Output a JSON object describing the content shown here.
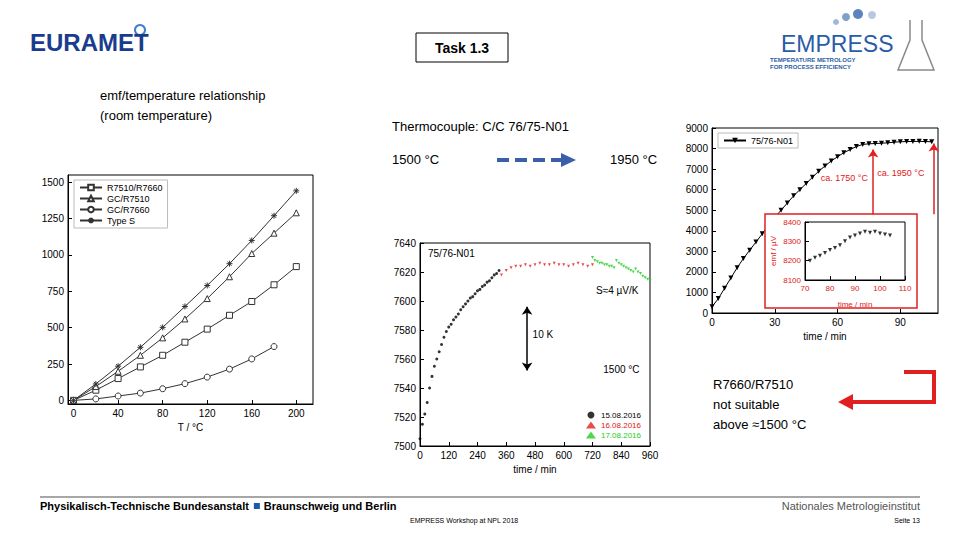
{
  "header": {
    "logo_left": "EURAMET",
    "task": "Task 1.3",
    "logo_right": "EMPRESS",
    "logo_right_subtitle": [
      "TEMPERATURE METROLOGY",
      "FOR PROCESS EFFICIENCY"
    ]
  },
  "texts": {
    "left_caption": [
      "emf/temperature relationship",
      "(room temperature)"
    ],
    "thermocouple": "Thermocouple: C/C 76/75-N01",
    "from": "1500 °C",
    "to": "1950 °C",
    "conclusion": [
      "R7660/R7510",
      "not suitable",
      "above ≈1500 °C"
    ]
  },
  "footer": {
    "institute": "Physikalisch-Technische Bundesanstalt",
    "location": "Braunschweig und Berlin",
    "right": "Nationales Metrologieinstitut",
    "event": "EMPRESS Workshop at NPL 2018",
    "page": "Seite 13"
  },
  "chart_data": [
    {
      "type": "line",
      "xlabel": "T / °C",
      "x": [
        0,
        20,
        40,
        60,
        80,
        100,
        120,
        140,
        160,
        180,
        200
      ],
      "xlim": [
        -5,
        215
      ],
      "xticks": [
        0,
        40,
        80,
        120,
        160,
        200
      ],
      "ylim": [
        -25,
        1550
      ],
      "yticks": [
        0,
        250,
        500,
        750,
        1000,
        1250,
        1500
      ],
      "grid": false,
      "legend": "upper left",
      "series": [
        {
          "name": "R7510/R7660",
          "color": "#333333",
          "marker": "square_open",
          "values": [
            0,
            70,
            150,
            230,
            310,
            400,
            490,
            585,
            680,
            795,
            920
          ]
        },
        {
          "name": "GC/R7510",
          "color": "#333333",
          "marker": "triangle_open",
          "values": [
            0,
            95,
            200,
            310,
            430,
            560,
            700,
            850,
            1010,
            1150,
            1290
          ]
        },
        {
          "name": "GC/R7660",
          "color": "#333333",
          "marker": "circle_open",
          "values": [
            0,
            10,
            30,
            50,
            80,
            115,
            160,
            215,
            285,
            370,
            null
          ]
        },
        {
          "name": "Type S",
          "color": "#333333",
          "marker": "asterisk",
          "values": [
            0,
            113,
            235,
            365,
            502,
            646,
            790,
            940,
            1100,
            1270,
            1441
          ]
        }
      ]
    },
    {
      "type": "scatter",
      "title": "75/76-N01",
      "xlabel": "time / min",
      "xlim": [
        0,
        960
      ],
      "xticks": [
        0,
        120,
        240,
        360,
        480,
        600,
        720,
        840,
        960
      ],
      "ylim": [
        7500,
        7640
      ],
      "yticks": [
        7500,
        7520,
        7540,
        7560,
        7580,
        7600,
        7620,
        7640
      ],
      "grid": false,
      "legend": "lower right",
      "series": [
        {
          "name": "15.08.2016",
          "color": "#000000",
          "marker": "circle",
          "x": [
            0,
            10,
            20,
            30,
            40,
            50,
            60,
            70,
            80,
            90,
            100,
            110,
            120,
            130,
            140,
            150,
            160,
            170,
            180,
            190,
            200,
            210,
            220,
            230,
            240,
            250,
            260,
            270,
            280,
            290,
            300,
            310,
            320,
            330
          ],
          "values": [
            7505,
            7515,
            7522,
            7530,
            7540,
            7548,
            7555,
            7560,
            7565,
            7570,
            7575,
            7579,
            7582,
            7584,
            7587,
            7589,
            7591,
            7594,
            7596,
            7598,
            7600,
            7602,
            7603,
            7605,
            7607,
            7608,
            7610,
            7611,
            7613,
            7614,
            7616,
            7618,
            7619,
            7621
          ]
        },
        {
          "name": "16.08.2016",
          "color": "#e02020",
          "marker": "triangle_down",
          "x": [
            340,
            360,
            380,
            400,
            420,
            440,
            460,
            480,
            500,
            520,
            540,
            560,
            580,
            600,
            620,
            640,
            660,
            680,
            700,
            720
          ],
          "values": [
            7618,
            7621,
            7623,
            7624,
            7624,
            7625,
            7624,
            7625,
            7626,
            7625,
            7625,
            7626,
            7625,
            7625,
            7624,
            7625,
            7626,
            7625,
            7624,
            7625
          ]
        },
        {
          "name": "17.08.2016",
          "color": "#22cc22",
          "marker": "triangle_down",
          "x": [
            720,
            730,
            740,
            750,
            760,
            770,
            780,
            790,
            800,
            810,
            820,
            830,
            840,
            850,
            860,
            870,
            880,
            890,
            900,
            910,
            920,
            930,
            940,
            950,
            960
          ],
          "values": [
            7630,
            7628,
            7627,
            7626,
            7626,
            7625,
            7625,
            7624,
            7624,
            7623,
            7628,
            7626,
            7625,
            7624,
            7623,
            7622,
            7621,
            7620,
            7622,
            7620,
            7619,
            7617,
            7616,
            7615,
            7614
          ]
        }
      ],
      "annotations": [
        {
          "text": "S≈4 µV/K",
          "x": 735,
          "y": 7607,
          "color": "#000000"
        },
        {
          "text": "10 K",
          "x": 470,
          "y": 7577,
          "color": "#000000",
          "arrow_x": 447,
          "arrow_y": [
            7552,
            7596
          ]
        },
        {
          "text": "1500 °C",
          "x": 765,
          "y": 7553,
          "color": "#000000"
        }
      ]
    },
    {
      "type": "line",
      "xlabel": "time / min",
      "x": [
        0,
        3,
        6,
        9,
        12,
        15,
        18,
        21,
        24,
        27,
        30,
        33,
        36,
        39,
        42,
        45,
        48,
        51,
        54,
        57,
        60,
        63,
        66,
        69,
        72,
        75,
        78,
        81,
        84,
        87,
        90,
        93,
        96,
        99,
        102,
        105
      ],
      "xlim": [
        0,
        108
      ],
      "xticks": [
        0,
        30,
        60,
        90
      ],
      "ylim": [
        0,
        9000
      ],
      "yticks": [
        0,
        1000,
        2000,
        3000,
        4000,
        5000,
        6000,
        7000,
        8000,
        9000
      ],
      "grid": false,
      "legend": "upper left",
      "series": [
        {
          "name": "75/76-N01",
          "color": "#000000",
          "marker": "triangle_down",
          "values": [
            300,
            700,
            1200,
            1700,
            2200,
            2650,
            3050,
            3450,
            3850,
            4250,
            4650,
            5000,
            5350,
            5700,
            6000,
            6300,
            6600,
            6900,
            7150,
            7400,
            7600,
            7800,
            7950,
            8100,
            8200,
            8230,
            8245,
            8260,
            8280,
            8310,
            8330,
            8340,
            8345,
            8350,
            8340,
            8330
          ]
        }
      ],
      "annotations": [
        {
          "text": "ca. 1750 °C",
          "x": 52,
          "y": 6560,
          "color": "#e02020",
          "arrow_x": 77,
          "arrow_y": [
            4800,
            7950
          ]
        },
        {
          "text": "ca. 1950 °C",
          "x": 79,
          "y": 6800,
          "color": "#e02020",
          "arrow_x": 106,
          "arrow_y": [
            4800,
            8250
          ]
        }
      ]
    },
    {
      "type": "scatter",
      "xlabel": "time / min",
      "ylabel": "emf / µV",
      "xlim": [
        70,
        110
      ],
      "xticks": [
        70,
        80,
        90,
        100,
        110
      ],
      "ylim": [
        8100,
        8400
      ],
      "yticks": [
        8100,
        8200,
        8300,
        8400
      ],
      "grid": false,
      "series": [
        {
          "color": "#000000",
          "marker": "triangle_down",
          "x": [
            72,
            74,
            76,
            78,
            80,
            82,
            84,
            86,
            88,
            90,
            92,
            94,
            96,
            98,
            100,
            102,
            104
          ],
          "values": [
            8200,
            8215,
            8225,
            8240,
            8255,
            8265,
            8280,
            8300,
            8320,
            8330,
            8340,
            8350,
            8345,
            8350,
            8340,
            8335,
            8330
          ]
        }
      ]
    }
  ]
}
